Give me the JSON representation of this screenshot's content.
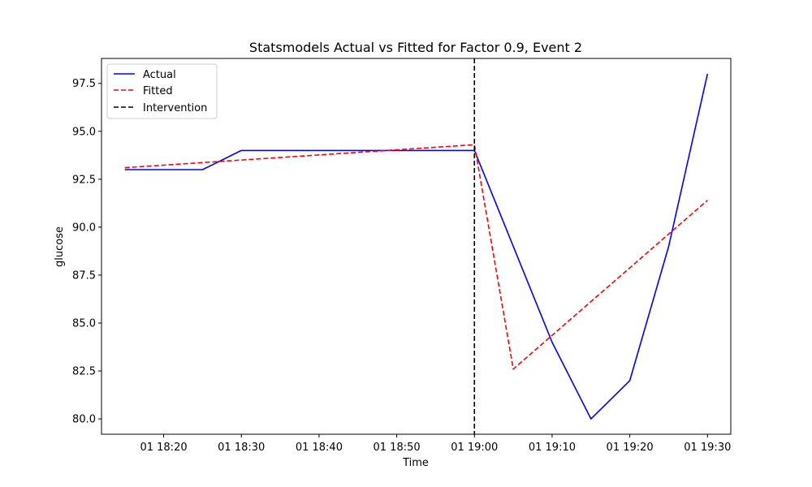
{
  "chart_data": {
    "type": "line",
    "title": "Statsmodels Actual vs Fitted for Factor 0.9, Event 2",
    "xlabel": "Time",
    "ylabel": "glucose",
    "x_axis_type": "time",
    "xlim": [
      "01 18:12",
      "01 19:33"
    ],
    "ylim": [
      79.2,
      98.8
    ],
    "x_ticks": [
      "01 18:20",
      "01 18:30",
      "01 18:40",
      "01 18:50",
      "01 19:00",
      "01 19:10",
      "01 19:20",
      "01 19:30"
    ],
    "y_ticks": [
      "80.0",
      "82.5",
      "85.0",
      "87.5",
      "90.0",
      "92.5",
      "95.0",
      "97.5"
    ],
    "grid": false,
    "legend_position": "top-left",
    "series": [
      {
        "name": "Actual",
        "color": "#0000ff",
        "style": "solid",
        "points": [
          {
            "x": "01 18:15",
            "y": 93.0
          },
          {
            "x": "01 18:25",
            "y": 93.0
          },
          {
            "x": "01 18:30",
            "y": 94.0
          },
          {
            "x": "01 19:00",
            "y": 94.0
          },
          {
            "x": "01 19:10",
            "y": 84.0
          },
          {
            "x": "01 19:15",
            "y": 80.0
          },
          {
            "x": "01 19:20",
            "y": 82.0
          },
          {
            "x": "01 19:25",
            "y": 89.0
          },
          {
            "x": "01 19:30",
            "y": 98.0
          }
        ]
      },
      {
        "name": "Fitted",
        "color": "#ff0000",
        "style": "dashed",
        "points": [
          {
            "x": "01 18:15",
            "y": 93.1
          },
          {
            "x": "01 19:00",
            "y": 94.3
          },
          {
            "x": "01 19:05",
            "y": 82.6
          },
          {
            "x": "01 19:30",
            "y": 91.4
          }
        ]
      }
    ],
    "vlines": [
      {
        "name": "Intervention",
        "x": "01 19:00",
        "color": "#000000",
        "style": "dashed"
      }
    ]
  }
}
